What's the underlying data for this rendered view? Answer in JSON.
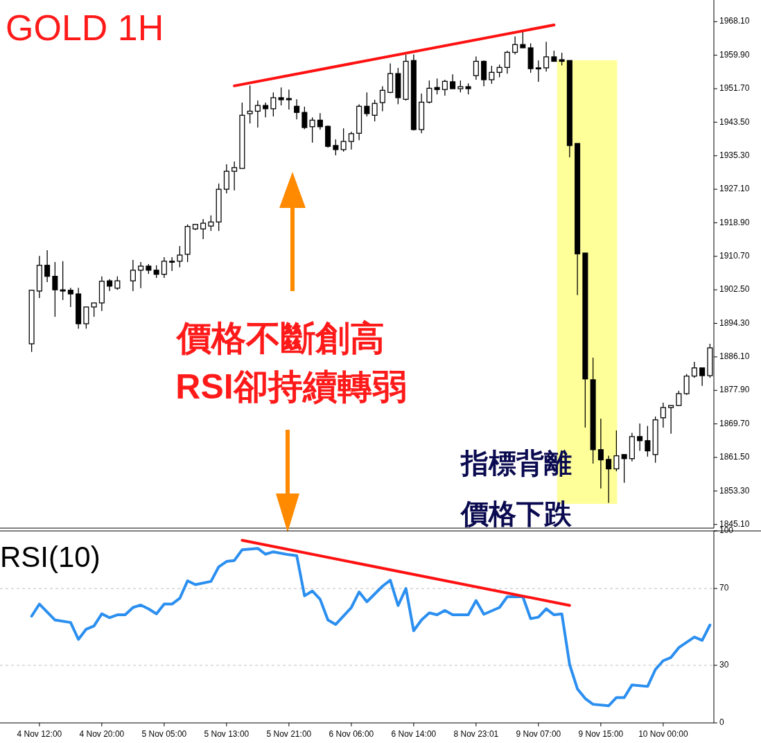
{
  "chart_data": [
    {
      "type": "candlestick",
      "title": "GOLD 1H",
      "tick_labels": "y",
      "ylim": [
        1844.2,
        1973.4
      ],
      "yticks": [
        {
          "value": 1845.1,
          "label": "1845.10"
        },
        {
          "value": 1853.3,
          "label": "1853.30"
        },
        {
          "value": 1861.5,
          "label": "1861.50"
        },
        {
          "value": 1869.7,
          "label": "1869.70"
        },
        {
          "value": 1877.9,
          "label": "1877.90"
        },
        {
          "value": 1886.1,
          "label": "1886.10"
        },
        {
          "value": 1894.3,
          "label": "1894.30"
        },
        {
          "value": 1902.5,
          "label": "1902.50"
        },
        {
          "value": 1910.7,
          "label": "1910.70"
        },
        {
          "value": 1918.9,
          "label": "1918.90"
        },
        {
          "value": 1927.1,
          "label": "1927.10"
        },
        {
          "value": 1935.3,
          "label": "1935.30"
        },
        {
          "value": 1943.5,
          "label": "1943.50"
        },
        {
          "value": 1951.7,
          "label": "1951.70"
        },
        {
          "value": 1959.9,
          "label": "1959.90"
        },
        {
          "value": 1968.1,
          "label": "1968.10"
        }
      ],
      "categories": [
        null,
        null,
        null,
        null,
        null,
        null,
        null,
        null,
        null,
        null,
        null,
        null,
        null,
        null,
        null,
        null,
        null,
        null,
        null,
        null,
        null,
        null,
        null,
        null,
        null,
        null,
        null,
        null,
        null,
        null,
        null,
        null,
        null,
        null,
        null,
        null,
        null,
        null,
        null,
        null,
        null,
        null,
        null,
        null,
        null,
        null,
        null,
        null,
        null,
        null,
        null,
        null,
        null,
        null,
        null,
        null,
        null,
        null,
        null,
        null,
        null,
        null,
        null,
        null,
        null,
        null,
        null,
        null,
        null,
        null,
        null,
        null,
        null,
        null,
        null,
        null,
        null,
        null,
        null,
        null,
        null,
        null,
        null,
        null,
        null,
        null,
        null,
        null
      ],
      "ohlc": [
        [
          1889.3,
          1902.4,
          1887.3,
          1902.4
        ],
        [
          1902.2,
          1910.8,
          1900.5,
          1908.5
        ],
        [
          1908.5,
          1912.2,
          1904.4,
          1905.8
        ],
        [
          1905.8,
          1909.3,
          1895.9,
          1902.5
        ],
        [
          1902.5,
          1909.5,
          1900.0,
          1902.2
        ],
        [
          1902.4,
          1903.0,
          1898.3,
          1901.5
        ],
        [
          1901.5,
          1903.0,
          1893.0,
          1894.2
        ],
        [
          1894.2,
          1898.3,
          1893.0,
          1898.3
        ],
        [
          1898.3,
          1899.3,
          1895.9,
          1899.3
        ],
        [
          1899.3,
          1905.8,
          1897.3,
          1904.6
        ],
        [
          1904.7,
          1905.1,
          1902.2,
          1903.4
        ],
        [
          1902.9,
          1905.8,
          1902.5,
          1904.7
        ],
        null,
        [
          1904.7,
          1909.8,
          1902.2,
          1907.3
        ],
        [
          1907.3,
          1909.3,
          1902.9,
          1908.3
        ],
        [
          1908.3,
          1908.8,
          1906.4,
          1907.3
        ],
        [
          1907.3,
          1908.5,
          1905.4,
          1906.3
        ],
        [
          1906.3,
          1910.5,
          1905.4,
          1909.5
        ],
        [
          1909.5,
          1910.5,
          1907.1,
          1909.3
        ],
        [
          1909.5,
          1913.2,
          1908.0,
          1911.0
        ],
        [
          1911.2,
          1918.5,
          1909.3,
          1918.0
        ],
        [
          1917.4,
          1918.6,
          1917.1,
          1918.5
        ],
        [
          1917.4,
          1919.8,
          1914.9,
          1918.8
        ],
        [
          1918.1,
          1920.7,
          1916.9,
          1919.1
        ],
        [
          1919.1,
          1928.5,
          1916.9,
          1927.1
        ],
        [
          1927.1,
          1933.2,
          1926.1,
          1931.5
        ],
        [
          1931.5,
          1933.9,
          1926.8,
          1932.4
        ],
        [
          1932.2,
          1948.3,
          1932.2,
          1945.2
        ],
        [
          1945.6,
          1952.5,
          1943.2,
          1946.2
        ],
        [
          1946.2,
          1948.8,
          1942.2,
          1947.6
        ],
        [
          1947.6,
          1948.3,
          1944.7,
          1946.8
        ],
        [
          1946.8,
          1950.8,
          1944.9,
          1949.5
        ],
        [
          1949.5,
          1952.0,
          1947.6,
          1949.0
        ],
        [
          1949.3,
          1951.5,
          1946.6,
          1949.0
        ],
        [
          1947.4,
          1949.1,
          1944.2,
          1945.9
        ],
        [
          1945.9,
          1947.3,
          1941.8,
          1942.2
        ],
        [
          1942.4,
          1944.7,
          1938.5,
          1944.0
        ],
        [
          1944.0,
          1945.7,
          1941.7,
          1942.4
        ],
        [
          1942.5,
          1942.7,
          1937.3,
          1937.6
        ],
        [
          1937.8,
          1939.3,
          1935.4,
          1936.8
        ],
        [
          1936.8,
          1942.0,
          1936.3,
          1938.8
        ],
        [
          1938.8,
          1941.2,
          1936.8,
          1940.7
        ],
        [
          1940.8,
          1947.9,
          1939.1,
          1947.4
        ],
        [
          1947.4,
          1950.8,
          1944.9,
          1945.6
        ],
        [
          1945.2,
          1949.0,
          1943.7,
          1948.1
        ],
        [
          1948.3,
          1952.3,
          1946.2,
          1951.3
        ],
        [
          1950.8,
          1957.9,
          1950.6,
          1955.4
        ],
        [
          1955.4,
          1956.8,
          1947.9,
          1949.5
        ],
        [
          1949.1,
          1960.0,
          1948.8,
          1958.4
        ],
        [
          1958.6,
          1960.1,
          1941.5,
          1941.7
        ],
        [
          1941.7,
          1950.5,
          1940.8,
          1948.4
        ],
        [
          1948.4,
          1953.7,
          1948.1,
          1951.8
        ],
        [
          1952.0,
          1954.2,
          1950.3,
          1951.5
        ],
        [
          1951.5,
          1953.9,
          1950.0,
          1953.5
        ],
        [
          1953.4,
          1955.2,
          1951.7,
          1951.7
        ],
        [
          1951.7,
          1953.7,
          1950.8,
          1952.2
        ],
        [
          1952.2,
          1953.0,
          1950.3,
          1951.7
        ],
        [
          1954.9,
          1959.6,
          1953.9,
          1958.4
        ],
        [
          1958.4,
          1958.6,
          1952.3,
          1953.9
        ],
        [
          1953.9,
          1957.3,
          1952.9,
          1955.7
        ],
        [
          1955.7,
          1957.6,
          1954.5,
          1956.9
        ],
        [
          1956.9,
          1961.0,
          1955.4,
          1960.6
        ],
        [
          1960.6,
          1964.5,
          1960.1,
          1962.5
        ],
        [
          1962.5,
          1965.6,
          1961.7,
          1961.7
        ],
        [
          1961.7,
          1962.8,
          1955.6,
          1956.6
        ],
        [
          1956.8,
          1958.6,
          1953.4,
          1956.6
        ],
        [
          1956.8,
          1963.2,
          1955.9,
          1959.5
        ],
        [
          1959.5,
          1961.0,
          1958.3,
          1958.4
        ],
        [
          1958.8,
          1960.5,
          1957.4,
          1958.4
        ],
        [
          1958.6,
          1958.6,
          1934.9,
          1937.8
        ],
        [
          1938.3,
          1938.3,
          1901.2,
          1911.3
        ],
        [
          1911.5,
          1911.5,
          1868.8,
          1880.7
        ],
        [
          1880.5,
          1885.9,
          1860.0,
          1863.4
        ],
        [
          1863.4,
          1871.0,
          1853.9,
          1860.9
        ],
        [
          1861.0,
          1861.9,
          1850.4,
          1858.7
        ],
        [
          1858.7,
          1868.1,
          1858.1,
          1861.9
        ],
        [
          1862.2,
          1862.2,
          1855.3,
          1861.2
        ],
        [
          1861.2,
          1867.5,
          1860.5,
          1866.6
        ],
        [
          1866.6,
          1869.8,
          1863.1,
          1865.6
        ],
        [
          1865.6,
          1869.2,
          1861.7,
          1863.1
        ],
        [
          1862.2,
          1871.5,
          1860.2,
          1870.7
        ],
        [
          1871.2,
          1874.9,
          1868.8,
          1873.7
        ],
        [
          1873.7,
          1874.2,
          1867.3,
          1874.2
        ],
        [
          1874.2,
          1877.8,
          1874.1,
          1877.1
        ],
        [
          1877.1,
          1881.9,
          1876.8,
          1881.4
        ],
        [
          1881.4,
          1884.9,
          1881.0,
          1883.4
        ],
        [
          1883.4,
          1883.4,
          1879.0,
          1881.5
        ],
        [
          1881.5,
          1889.3,
          1881.0,
          1888.3
        ]
      ],
      "series": [
        {
          "type": "line",
          "color": "#ff1111",
          "values": [
            null,
            null,
            null,
            null,
            null,
            null,
            null,
            null,
            null,
            null,
            null,
            null,
            null,
            null,
            null,
            null,
            null,
            null,
            null,
            null,
            null,
            null,
            null,
            null,
            null,
            null,
            1952.4,
            null,
            null,
            null,
            null,
            null,
            null,
            null,
            null,
            null,
            null,
            null,
            null,
            null,
            null,
            null,
            null,
            null,
            null,
            null,
            null,
            null,
            null,
            null,
            null,
            null,
            null,
            null,
            null,
            null,
            null,
            null,
            null,
            null,
            null,
            null,
            null,
            null,
            null,
            null,
            null,
            1967.3,
            null,
            null,
            null,
            null,
            null,
            null,
            null,
            null,
            null,
            null,
            null,
            null,
            null,
            null,
            null,
            null,
            null,
            null,
            null,
            null
          ]
        }
      ],
      "annotations": [
        "價格不斷創高",
        "RSI卻持續轉弱",
        "指標背離",
        "價格下跌"
      ]
    },
    {
      "type": "line",
      "title": "RSI(10)",
      "ylim": [
        0,
        100
      ],
      "yticks": [
        0,
        30,
        70,
        100
      ],
      "categories": [
        null,
        "4 Nov 12:00",
        null,
        null,
        null,
        null,
        null,
        null,
        null,
        "4 Nov 20:00",
        null,
        null,
        null,
        null,
        null,
        null,
        null,
        "5 Nov 05:00",
        null,
        null,
        null,
        null,
        null,
        null,
        null,
        "5 Nov 13:00",
        null,
        null,
        null,
        null,
        null,
        null,
        null,
        "5 Nov 21:00",
        null,
        null,
        null,
        null,
        null,
        null,
        null,
        "6 Nov 06:00",
        null,
        null,
        null,
        null,
        null,
        null,
        null,
        "6 Nov 14:00",
        null,
        null,
        null,
        null,
        null,
        null,
        null,
        "8 Nov 23:01",
        null,
        null,
        null,
        null,
        null,
        null,
        null,
        "9 Nov 07:00",
        null,
        null,
        null,
        null,
        null,
        null,
        null,
        "9 Nov 15:00",
        null,
        null,
        null,
        null,
        null,
        null,
        null,
        "10 Nov 00:00",
        null,
        null,
        null,
        null,
        null,
        null
      ],
      "ref_lines": [
        {
          "axis": "y",
          "value": 70,
          "color": "#c0c0c0",
          "line_style": "dashed"
        },
        {
          "axis": "y",
          "value": 30,
          "color": "#c0c0c0",
          "line_style": "dashed"
        }
      ],
      "series": [
        {
          "color": "#2b8ff0",
          "values": [
            55.6,
            61.9,
            null,
            53.6,
            null,
            52.3,
            43.5,
            48.8,
            50.5,
            56.8,
            54.8,
            56.3,
            56.3,
            60.1,
            61.4,
            59.4,
            56.8,
            61.9,
            61.9,
            64.9,
            74.0,
            72.0,
            null,
            73.7,
            81.3,
            84.1,
            84.6,
            90.2,
            null,
            90.9,
            87.9,
            89.1,
            null,
            87.6,
            87.1,
            66.2,
            68.7,
            64.4,
            53.6,
            51.3,
            null,
            60.1,
            68.2,
            63.1,
            null,
            71.2,
            74.3,
            61.1,
            70.0,
            48.0,
            53.6,
            57.3,
            56.3,
            58.6,
            56.3,
            null,
            56.3,
            63.7,
            56.6,
            null,
            60.1,
            65.7,
            null,
            65.7,
            54.3,
            55.1,
            59.4,
            56.3,
            56.8,
            30.4,
            17.7,
            12.7,
            9.7,
            null,
            8.9,
            13.2,
            13.2,
            19.8,
            null,
            19.0,
            27.8,
            32.4,
            34.1,
            39.2,
            null,
            44.7,
            43.0,
            51.0
          ]
        },
        {
          "color": "#ff1111",
          "values": [
            null,
            null,
            null,
            null,
            null,
            null,
            null,
            null,
            null,
            null,
            null,
            null,
            null,
            null,
            null,
            null,
            null,
            null,
            null,
            null,
            null,
            null,
            null,
            null,
            null,
            null,
            null,
            95.1,
            null,
            null,
            null,
            null,
            null,
            null,
            null,
            null,
            null,
            null,
            null,
            null,
            null,
            null,
            null,
            null,
            null,
            null,
            null,
            null,
            null,
            null,
            null,
            null,
            null,
            null,
            null,
            null,
            null,
            null,
            null,
            null,
            null,
            null,
            null,
            null,
            null,
            null,
            null,
            null,
            null,
            61.2,
            null,
            null,
            null,
            null,
            null,
            null,
            null,
            null,
            null,
            null,
            null,
            null,
            null,
            null,
            null,
            null,
            null,
            null
          ]
        }
      ]
    }
  ]
}
